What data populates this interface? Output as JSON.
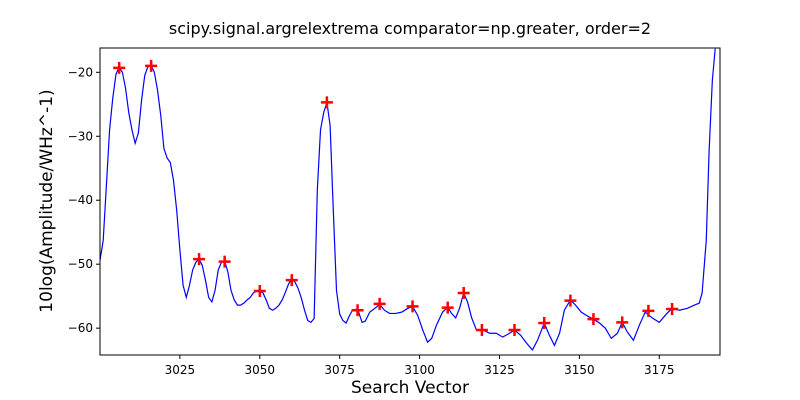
{
  "chart_data": {
    "type": "line",
    "title": "scipy.signal.argrelextrema comparator=np.greater, order=2",
    "xlabel": "Search Vector",
    "ylabel": "10log(Amplitude/WHz^-1)",
    "xlim": [
      3000,
      3194
    ],
    "ylim": [
      -64.2,
      -16.2
    ],
    "xticks": [
      3025,
      3050,
      3075,
      3100,
      3125,
      3150,
      3175
    ],
    "yticks": [
      {
        "value": -60,
        "label": "−60"
      },
      {
        "value": -50,
        "label": "−50"
      },
      {
        "value": -40,
        "label": "−40"
      },
      {
        "value": -30,
        "label": "−30"
      },
      {
        "value": -20,
        "label": "−20"
      }
    ],
    "series": [
      {
        "color": "#0000ff",
        "x": [
          3000,
          3001,
          3002,
          3003,
          3004,
          3005,
          3006,
          3007,
          3008,
          3009,
          3010,
          3011,
          3012,
          3013,
          3014,
          3015,
          3016,
          3017,
          3018,
          3019,
          3020,
          3021,
          3022,
          3023,
          3024,
          3025,
          3026,
          3027,
          3028,
          3029,
          3030,
          3031,
          3032,
          3033,
          3034,
          3035,
          3036,
          3037,
          3038,
          3039,
          3040,
          3041,
          3042,
          3043,
          3044,
          3045,
          3046,
          3047,
          3048,
          3049,
          3050,
          3051,
          3052,
          3053,
          3054,
          3055,
          3056,
          3057,
          3058,
          3059,
          3060,
          3061,
          3062,
          3063,
          3064,
          3065,
          3066,
          3067,
          3068,
          3069,
          3070,
          3071,
          3072,
          3073,
          3074,
          3075,
          3076,
          3077,
          3078,
          3079,
          3080.6,
          3082,
          3083,
          3084.4,
          3086,
          3087.5,
          3089,
          3090.6,
          3092.5,
          3094.4,
          3096.3,
          3097.8,
          3099.4,
          3101,
          3102.5,
          3103.8,
          3105.3,
          3107.2,
          3108.8,
          3110,
          3111.3,
          3112.5,
          3113.8,
          3115,
          3116.3,
          3117.8,
          3120,
          3121.9,
          3124,
          3126,
          3127.8,
          3129.7,
          3131.6,
          3133.4,
          3135.3,
          3136.9,
          3139,
          3140.6,
          3142.2,
          3143.8,
          3145.3,
          3147.2,
          3148.8,
          3150.6,
          3152.5,
          3154.4,
          3156.3,
          3158.1,
          3160,
          3161.9,
          3163.4,
          3165,
          3166.9,
          3168.8,
          3170.6,
          3172.8,
          3175,
          3177.2,
          3179,
          3181.3,
          3183.8,
          3186,
          3187.5,
          3188.4,
          3189.7,
          3190.6,
          3191.6,
          3192.5
        ],
        "values": [
          -49.4,
          -46.3,
          -37.7,
          -29,
          -24,
          -20.3,
          -19.2,
          -20,
          -22.5,
          -26.3,
          -29,
          -31.1,
          -29.5,
          -24.4,
          -20.5,
          -19.1,
          -18.9,
          -20,
          -22.8,
          -26.7,
          -31.9,
          -33.4,
          -34.1,
          -36.9,
          -41.6,
          -47.8,
          -53.3,
          -55.2,
          -53.3,
          -50.9,
          -49.7,
          -49.2,
          -50.2,
          -52.5,
          -55.2,
          -55.9,
          -54.1,
          -50.9,
          -49.7,
          -49.5,
          -51.2,
          -54.1,
          -55.6,
          -56.4,
          -56.4,
          -56.1,
          -55.6,
          -55.2,
          -54.5,
          -54.2,
          -54.2,
          -54.5,
          -55.6,
          -56.9,
          -57.2,
          -56.9,
          -56.4,
          -55.6,
          -54.4,
          -53.1,
          -52.3,
          -52.8,
          -53.8,
          -55.3,
          -57.2,
          -58.8,
          -59.1,
          -58.5,
          -38.4,
          -29,
          -26.3,
          -24.7,
          -28.3,
          -41.6,
          -54.1,
          -57.8,
          -58.8,
          -59.2,
          -58.1,
          -57.2,
          -57,
          -59.1,
          -58.9,
          -57.5,
          -56.9,
          -56.3,
          -57.2,
          -57.7,
          -57.7,
          -57.5,
          -56.9,
          -56.6,
          -58,
          -60.3,
          -62.2,
          -61.6,
          -59.5,
          -57.5,
          -56.7,
          -57.7,
          -58.4,
          -56.9,
          -54.5,
          -55.9,
          -58.4,
          -60.3,
          -60.3,
          -60.8,
          -60.8,
          -61.4,
          -60.9,
          -60.3,
          -61.1,
          -62.3,
          -63.4,
          -61.9,
          -59.2,
          -61.1,
          -62.7,
          -60.8,
          -57.2,
          -55.6,
          -56.4,
          -57.5,
          -58.1,
          -58.6,
          -59.2,
          -60,
          -61.6,
          -60.8,
          -59.1,
          -60.6,
          -61.9,
          -59.5,
          -57.5,
          -58.4,
          -59.1,
          -57.8,
          -56.9,
          -57.2,
          -56.9,
          -56.4,
          -56.1,
          -54.5,
          -46.3,
          -32.2,
          -21.3,
          -16.3
        ]
      },
      {
        "color": "#ff0000",
        "marker": "+",
        "x": [
          3006,
          3016,
          3031,
          3039,
          3050,
          3060,
          3071,
          3080.6,
          3087.5,
          3097.8,
          3108.8,
          3113.8,
          3119.5,
          3129.7,
          3139,
          3147.2,
          3154.4,
          3163.4,
          3171.6,
          3179
        ],
        "values": [
          -19.3,
          -19,
          -49.2,
          -49.6,
          -54.2,
          -52.5,
          -24.7,
          -57.2,
          -56.2,
          -56.6,
          -56.8,
          -54.5,
          -60.3,
          -60.3,
          -59.2,
          -55.7,
          -58.6,
          -59.1,
          -57.3,
          -57
        ]
      }
    ]
  }
}
